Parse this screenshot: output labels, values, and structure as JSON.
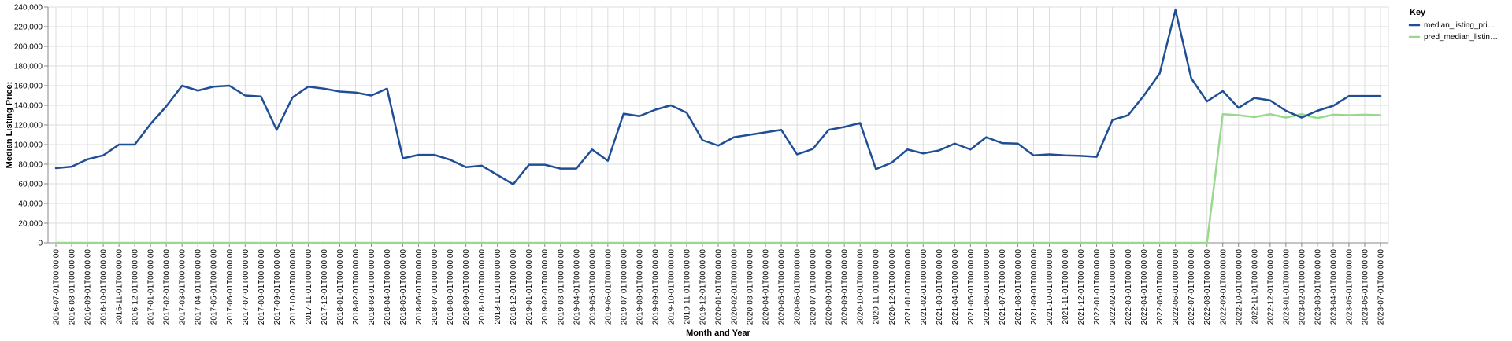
{
  "chart_data": {
    "type": "line",
    "xlabel": "Month and Year",
    "ylabel": "Median Listing Price:",
    "ylim": [
      0,
      240000
    ],
    "y_ticks": [
      "0",
      "20,000",
      "40,000",
      "60,000",
      "80,000",
      "100,000",
      "120,000",
      "140,000",
      "160,000",
      "180,000",
      "200,000",
      "220,000",
      "240,000"
    ],
    "grid": true,
    "legend": {
      "title": "Key",
      "placement": "top-right"
    },
    "x": [
      "2016-07-01T00:00:00",
      "2016-08-01T00:00:00",
      "2016-09-01T00:00:00",
      "2016-10-01T00:00:00",
      "2016-11-01T00:00:00",
      "2016-12-01T00:00:00",
      "2017-01-01T00:00:00",
      "2017-02-01T00:00:00",
      "2017-03-01T00:00:00",
      "2017-04-01T00:00:00",
      "2017-05-01T00:00:00",
      "2017-06-01T00:00:00",
      "2017-07-01T00:00:00",
      "2017-08-01T00:00:00",
      "2017-09-01T00:00:00",
      "2017-10-01T00:00:00",
      "2017-11-01T00:00:00",
      "2017-12-01T00:00:00",
      "2018-01-01T00:00:00",
      "2018-02-01T00:00:00",
      "2018-03-01T00:00:00",
      "2018-04-01T00:00:00",
      "2018-05-01T00:00:00",
      "2018-06-01T00:00:00",
      "2018-07-01T00:00:00",
      "2018-08-01T00:00:00",
      "2018-09-01T00:00:00",
      "2018-10-01T00:00:00",
      "2018-11-01T00:00:00",
      "2018-12-01T00:00:00",
      "2019-01-01T00:00:00",
      "2019-02-01T00:00:00",
      "2019-03-01T00:00:00",
      "2019-04-01T00:00:00",
      "2019-05-01T00:00:00",
      "2019-06-01T00:00:00",
      "2019-07-01T00:00:00",
      "2019-08-01T00:00:00",
      "2019-09-01T00:00:00",
      "2019-10-01T00:00:00",
      "2019-11-01T00:00:00",
      "2019-12-01T00:00:00",
      "2020-01-01T00:00:00",
      "2020-02-01T00:00:00",
      "2020-03-01T00:00:00",
      "2020-04-01T00:00:00",
      "2020-05-01T00:00:00",
      "2020-06-01T00:00:00",
      "2020-07-01T00:00:00",
      "2020-08-01T00:00:00",
      "2020-09-01T00:00:00",
      "2020-10-01T00:00:00",
      "2020-11-01T00:00:00",
      "2020-12-01T00:00:00",
      "2021-01-01T00:00:00",
      "2021-02-01T00:00:00",
      "2021-03-01T00:00:00",
      "2021-04-01T00:00:00",
      "2021-05-01T00:00:00",
      "2021-06-01T00:00:00",
      "2021-07-01T00:00:00",
      "2021-08-01T00:00:00",
      "2021-09-01T00:00:00",
      "2021-10-01T00:00:00",
      "2021-11-01T00:00:00",
      "2021-12-01T00:00:00",
      "2022-01-01T00:00:00",
      "2022-02-01T00:00:00",
      "2022-03-01T00:00:00",
      "2022-04-01T00:00:00",
      "2022-05-01T00:00:00",
      "2022-06-01T00:00:00",
      "2022-07-01T00:00:00",
      "2022-08-01T00:00:00",
      "2022-09-01T00:00:00",
      "2022-10-01T00:00:00",
      "2022-11-01T00:00:00",
      "2022-12-01T00:00:00",
      "2023-01-01T00:00:00",
      "2023-02-01T00:00:00",
      "2023-03-01T00:00:00",
      "2023-04-01T00:00:00",
      "2023-05-01T00:00:00",
      "2023-06-01T00:00:00",
      "2023-07-01T00:00:00"
    ],
    "series": [
      {
        "name": "median_listing_pri…",
        "color": "#1f4e96",
        "values": [
          76000,
          77500,
          85000,
          89000,
          100000,
          100000,
          121000,
          139000,
          160000,
          155000,
          159000,
          160000,
          150000,
          149000,
          115000,
          148000,
          159000,
          157000,
          154000,
          153000,
          150000,
          157000,
          86000,
          89500,
          89500,
          84500,
          77000,
          78500,
          69000,
          59500,
          79500,
          79500,
          75500,
          75500,
          95000,
          83500,
          131500,
          129000,
          135500,
          140000,
          132500,
          104500,
          99000,
          107500,
          110000,
          112500,
          115000,
          90000,
          95500,
          115000,
          118000,
          122000,
          75000,
          81500,
          95000,
          91000,
          94000,
          101000,
          95000,
          107500,
          101500,
          101000,
          89000,
          90000,
          89000,
          88500,
          87500,
          125000,
          130000,
          150000,
          172500,
          237000,
          167500,
          144000,
          154500,
          137500,
          147500,
          145000,
          134500,
          127500,
          134500,
          139500,
          149500,
          149500,
          149500
        ]
      },
      {
        "name": "pred_median_listin…",
        "color": "#98d98e",
        "values": [
          0,
          0,
          0,
          0,
          0,
          0,
          0,
          0,
          0,
          0,
          0,
          0,
          0,
          0,
          0,
          0,
          0,
          0,
          0,
          0,
          0,
          0,
          0,
          0,
          0,
          0,
          0,
          0,
          0,
          0,
          0,
          0,
          0,
          0,
          0,
          0,
          0,
          0,
          0,
          0,
          0,
          0,
          0,
          0,
          0,
          0,
          0,
          0,
          0,
          0,
          0,
          0,
          0,
          0,
          0,
          0,
          0,
          0,
          0,
          0,
          0,
          0,
          0,
          0,
          0,
          0,
          0,
          0,
          0,
          0,
          0,
          0,
          0,
          0,
          131000,
          130000,
          128000,
          131000,
          127500,
          131000,
          127000,
          130500,
          130000,
          130500,
          130000
        ]
      }
    ]
  }
}
